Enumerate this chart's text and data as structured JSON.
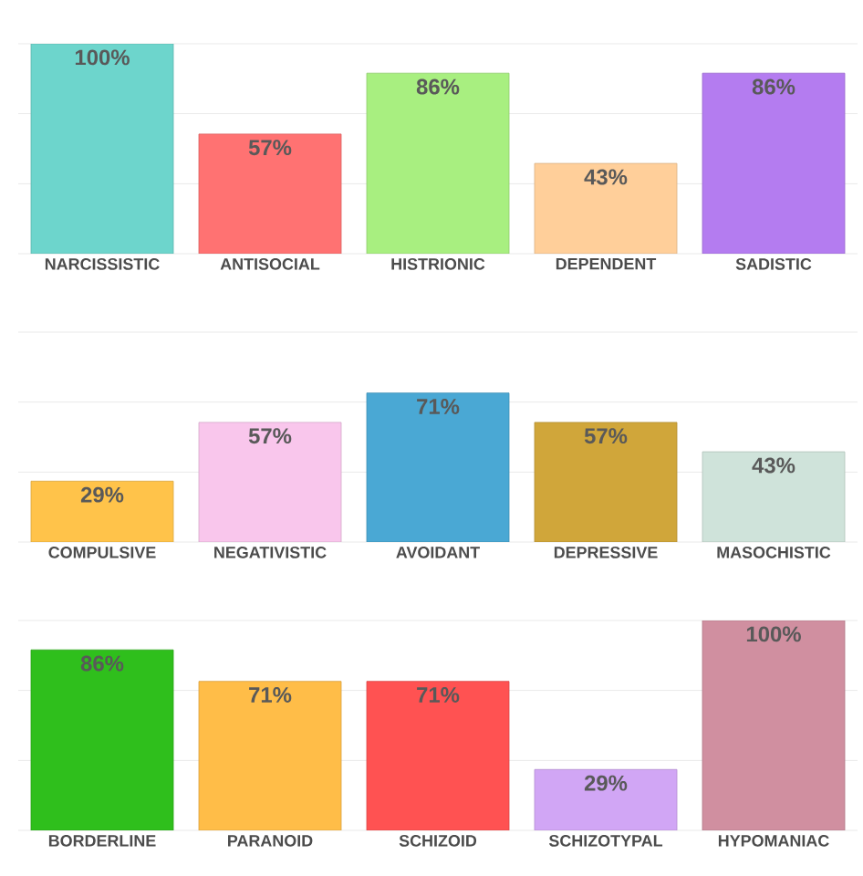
{
  "chart_data": [
    {
      "type": "bar",
      "categories": [
        "NARCISSISTIC",
        "ANTISOCIAL",
        "HISTRIONIC",
        "DEPENDENT",
        "SADISTIC"
      ],
      "values": [
        100,
        57,
        86,
        43,
        86
      ],
      "value_labels": [
        "100%",
        "57%",
        "86%",
        "43%",
        "86%"
      ],
      "colors": [
        "#6dd5cc",
        "#ff7272",
        "#a8ef80",
        "#ffcf9a",
        "#b47cf0"
      ],
      "ylim": [
        0,
        100
      ],
      "yticks": [
        {
          "value": 0,
          "label": null
        },
        {
          "value": 33.3,
          "label": null
        },
        {
          "value": 66.7,
          "label": null
        },
        {
          "value": 100,
          "label": null
        }
      ],
      "grid": "y",
      "tick_labels": "x"
    },
    {
      "type": "bar",
      "categories": [
        "COMPULSIVE",
        "NEGATIVISTIC",
        "AVOIDANT",
        "DEPRESSIVE",
        "MASOCHISTIC"
      ],
      "values": [
        29,
        57,
        71,
        57,
        43
      ],
      "value_labels": [
        "29%",
        "57%",
        "71%",
        "57%",
        "43%"
      ],
      "colors": [
        "#ffc34a",
        "#f9c6ec",
        "#4aa8d4",
        "#d0a63a",
        "#cfe3da"
      ],
      "ylim": [
        0,
        100
      ],
      "yticks": [
        {
          "value": 0,
          "label": null
        },
        {
          "value": 33.3,
          "label": null
        },
        {
          "value": 66.7,
          "label": null
        },
        {
          "value": 100,
          "label": null
        }
      ],
      "grid": "y",
      "tick_labels": "x"
    },
    {
      "type": "bar",
      "categories": [
        "BORDERLINE",
        "PARANOID",
        "SCHIZOID",
        "SCHIZOTYPAL",
        "HYPOMANIAC"
      ],
      "values": [
        86,
        71,
        71,
        29,
        100
      ],
      "value_labels": [
        "86%",
        "71%",
        "71%",
        "29%",
        "100%"
      ],
      "colors": [
        "#2fbf1c",
        "#ffbd48",
        "#ff5252",
        "#d1a6f5",
        "#d08fa0"
      ],
      "ylim": [
        0,
        100
      ],
      "yticks": [
        {
          "value": 0,
          "label": null
        },
        {
          "value": 33.3,
          "label": null
        },
        {
          "value": 66.7,
          "label": null
        },
        {
          "value": 100,
          "label": null
        }
      ],
      "grid": "y",
      "tick_labels": "x"
    }
  ]
}
